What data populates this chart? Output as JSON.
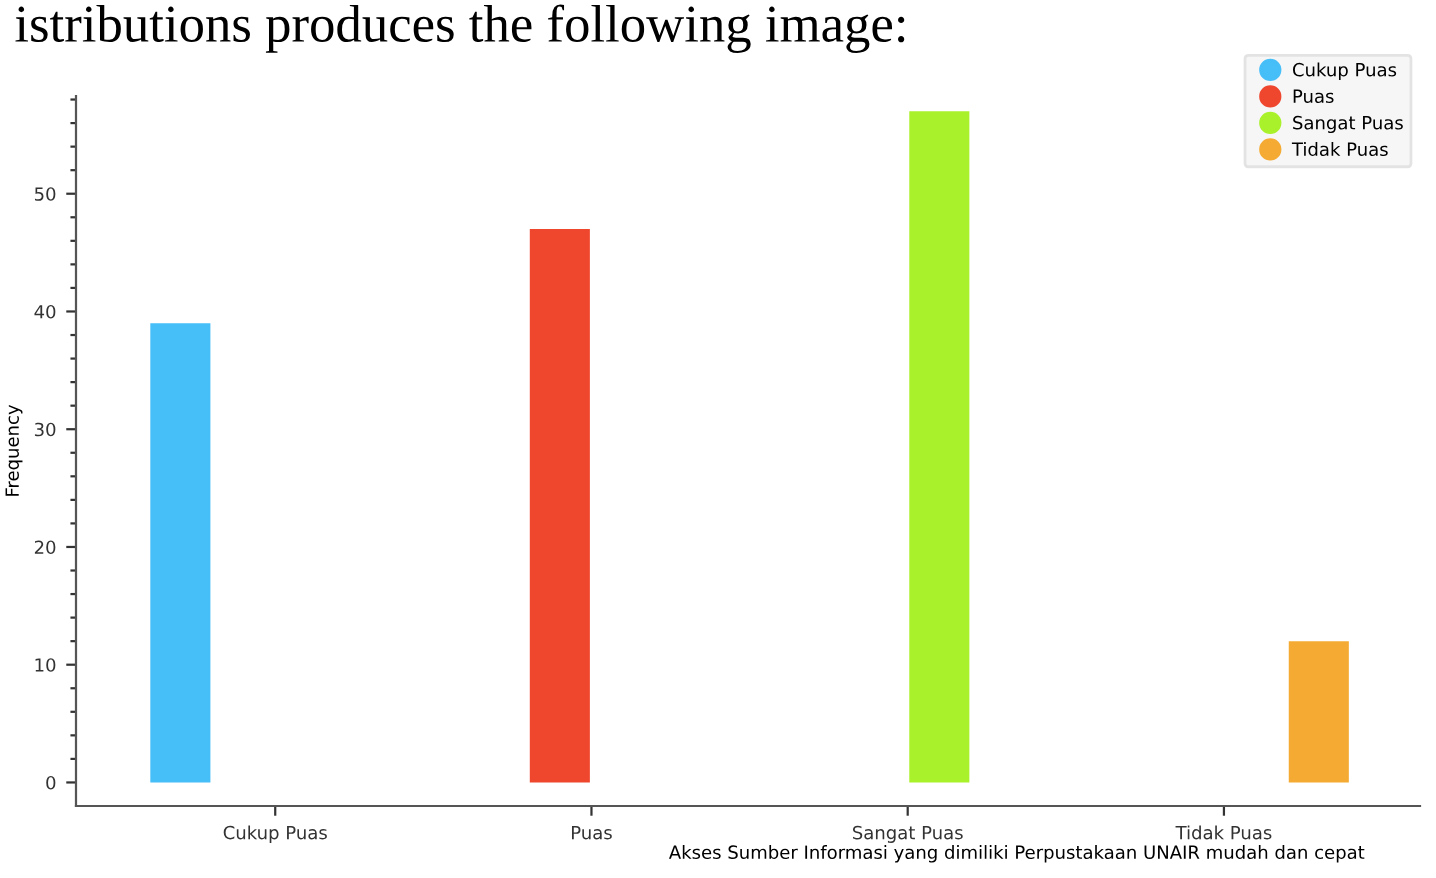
{
  "chart_data": {
    "type": "bar",
    "ylabel": "Frequency",
    "xlabel": "Akses Sumber Informasi yang dimiliki Perpustakaan UNAIR mudah dan cepat",
    "annotations": [
      "istributions produces the following image:"
    ],
    "categories": [
      "Cukup Puas",
      "Puas",
      "Sangat Puas",
      "Tidak Puas"
    ],
    "series": [
      {
        "name": "Cukup Puas",
        "color": "#46bef8",
        "values": [
          39,
          null,
          null,
          null
        ]
      },
      {
        "name": "Puas",
        "color": "#ef472e",
        "values": [
          null,
          47,
          null,
          null
        ]
      },
      {
        "name": "Sangat Puas",
        "color": "#a9f12a",
        "values": [
          null,
          null,
          57,
          null
        ]
      },
      {
        "name": "Tidak Puas",
        "color": "#f5ab33",
        "values": [
          null,
          null,
          null,
          12
        ]
      }
    ],
    "ylim": [
      -2,
      58.3
    ],
    "yticks": [
      0,
      {
        "value": 2,
        "label": null
      },
      {
        "value": 4,
        "label": null
      },
      {
        "value": 6,
        "label": null
      },
      {
        "value": 8,
        "label": null
      },
      10,
      {
        "value": 12,
        "label": null
      },
      {
        "value": 14,
        "label": null
      },
      {
        "value": 16,
        "label": null
      },
      {
        "value": 18,
        "label": null
      },
      20,
      {
        "value": 22,
        "label": null
      },
      {
        "value": 24,
        "label": null
      },
      {
        "value": 26,
        "label": null
      },
      {
        "value": 28,
        "label": null
      },
      30,
      {
        "value": 32,
        "label": null
      },
      {
        "value": 34,
        "label": null
      },
      {
        "value": 36,
        "label": null
      },
      {
        "value": 38,
        "label": null
      },
      40,
      {
        "value": 42,
        "label": null
      },
      {
        "value": 44,
        "label": null
      },
      {
        "value": 46,
        "label": null
      },
      {
        "value": 48,
        "label": null
      },
      50,
      {
        "value": 52,
        "label": null
      },
      {
        "value": 54,
        "label": null
      },
      {
        "value": 56,
        "label": null
      },
      {
        "value": 58,
        "label": null
      }
    ],
    "grid": false,
    "legend": "top right"
  }
}
